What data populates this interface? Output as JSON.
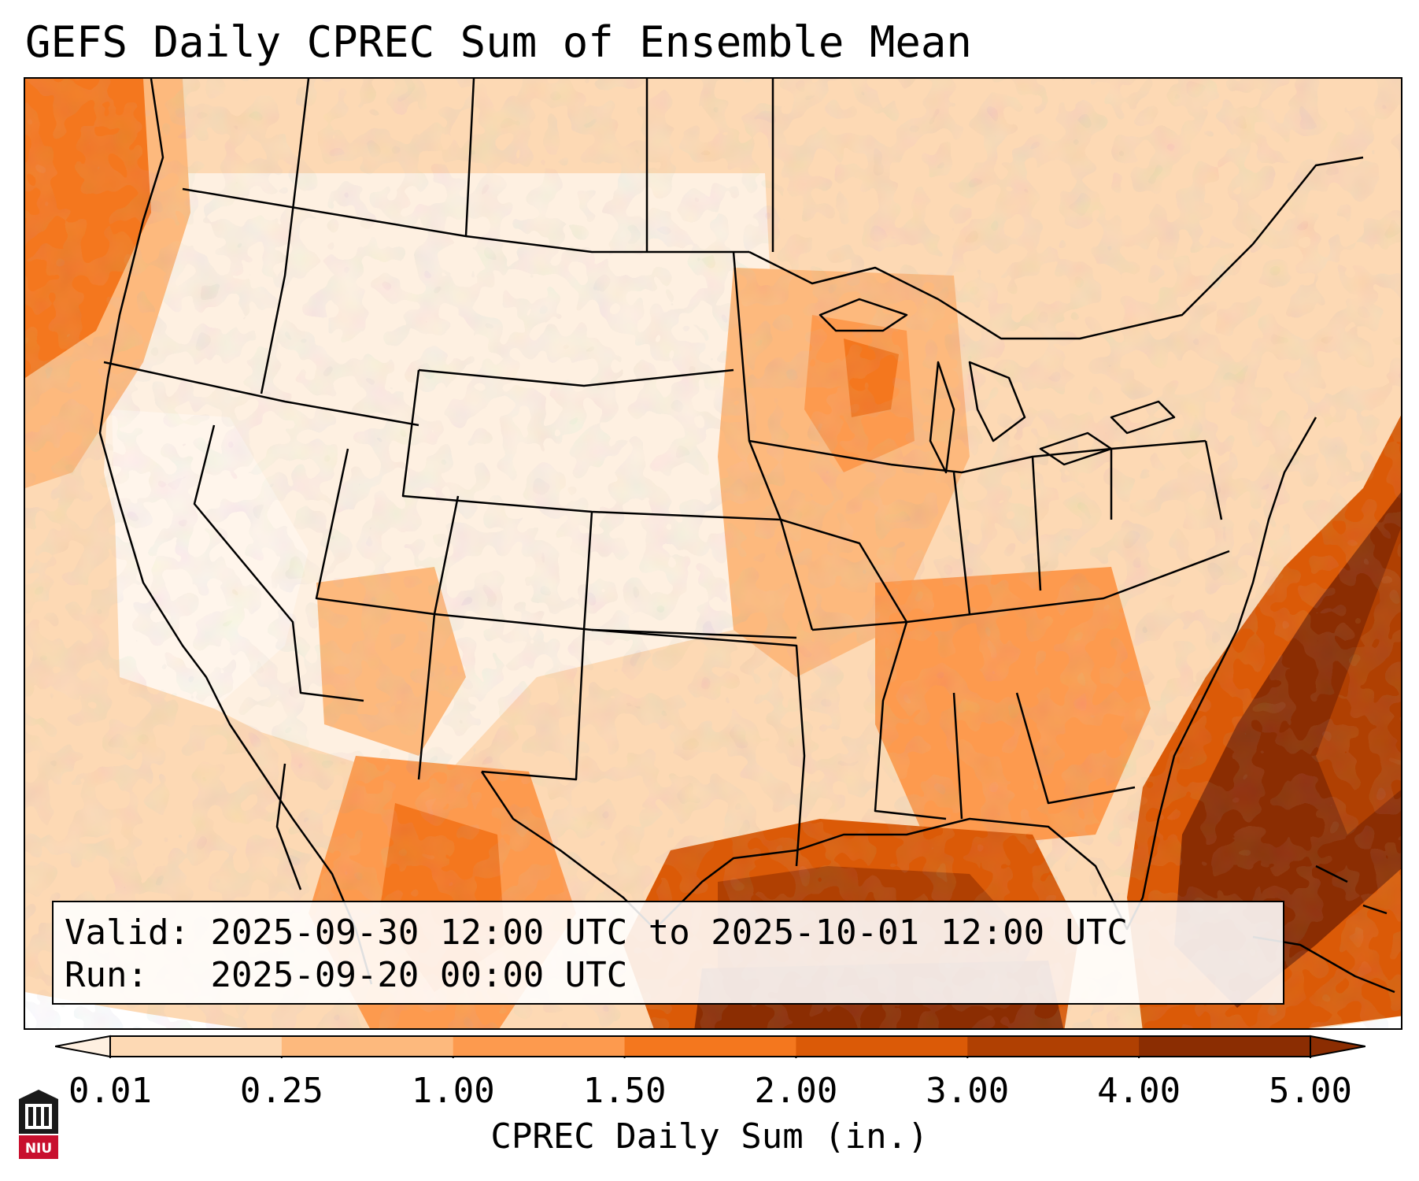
{
  "title": "GEFS Daily CPREC Sum of Ensemble Mean",
  "info": {
    "valid_label": "Valid:",
    "valid_value": "2025-09-30 12:00 UTC to 2025-10-01 12:00 UTC",
    "run_label": "Run:",
    "run_value": "2025-09-20 00:00 UTC"
  },
  "colorbar": {
    "label": "CPREC Daily Sum (in.)",
    "ticks": [
      "0.01",
      "0.25",
      "1.00",
      "1.50",
      "2.00",
      "3.00",
      "4.00",
      "5.00"
    ],
    "colors": [
      "#fef0e1",
      "#fdd9b4",
      "#fdb97d",
      "#fd9a4e",
      "#f4771e",
      "#db5a07",
      "#b04002",
      "#8b2d02"
    ],
    "extend": "both"
  },
  "logo": {
    "text": "NIU",
    "colors": {
      "primary": "#c8102e",
      "dark": "#1a1a1a"
    }
  }
}
